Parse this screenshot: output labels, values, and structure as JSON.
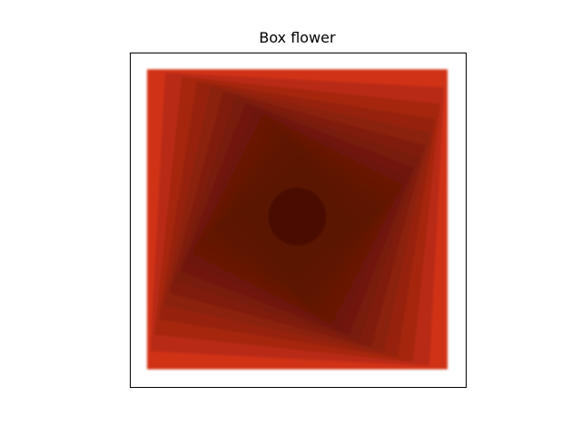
{
  "chart_data": {
    "type": "other",
    "title": "Box flower",
    "xlabel": "",
    "ylabel": "",
    "axes_ticks": false,
    "grid": false,
    "legend": "none",
    "shape_count": 20,
    "rotation_step_deg": 3,
    "scale_factor_per_step": 0.93,
    "square_alpha": 0.2,
    "outer_color": "#d03318",
    "center_color": "#3a0e06",
    "frame_color": "#000000"
  }
}
